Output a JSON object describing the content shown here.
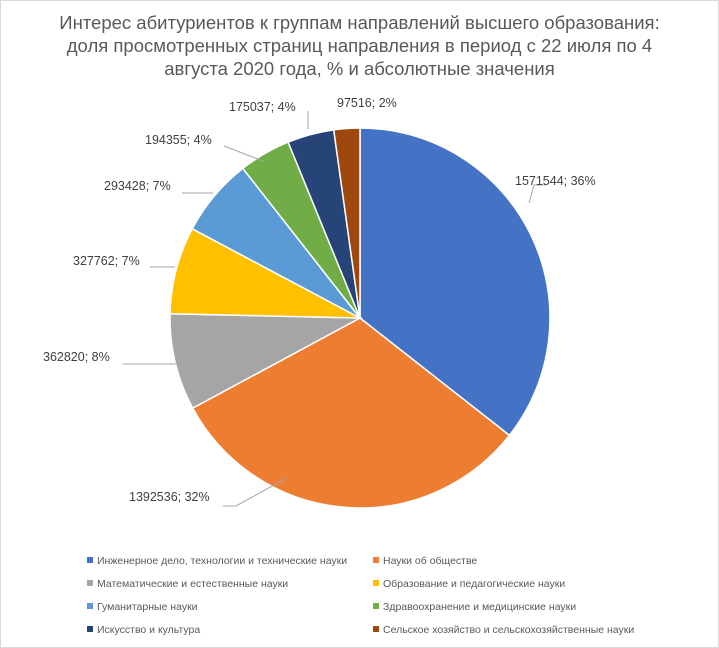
{
  "title_lines": [
    "Интерес абитуриентов к группам направлений высшего образования:",
    "доля просмотренных страниц направления в период с 22 июля по 4",
    "августа 2020 года, % и абсолютные значения"
  ],
  "chart_data": {
    "type": "pie",
    "title": "Интерес абитуриентов к группам направлений высшего образования: доля просмотренных страниц направления в период с 22 июля по 4 августа 2020 года, % и абсолютные значения",
    "legend_position": "bottom",
    "slices": [
      {
        "name": "Инженерное дело, технологии и технические науки",
        "value": 1571544,
        "percent": 36,
        "label": "1571544; 36%",
        "color": "#4472c4"
      },
      {
        "name": "Науки об обществе",
        "value": 1392536,
        "percent": 32,
        "label": "1392536; 32%",
        "color": "#ed7d31"
      },
      {
        "name": "Математические и естественные науки",
        "value": 362820,
        "percent": 8,
        "label": "362820; 8%",
        "color": "#a5a5a5"
      },
      {
        "name": "Образование и педагогические науки",
        "value": 327762,
        "percent": 7,
        "label": "327762; 7%",
        "color": "#ffc000"
      },
      {
        "name": "Гуманитарные науки",
        "value": 293428,
        "percent": 7,
        "label": "293428; 7%",
        "color": "#5b9bd5"
      },
      {
        "name": "Здравоохранение и медицинские науки",
        "value": 194355,
        "percent": 4,
        "label": "194355; 4%",
        "color": "#70ad47"
      },
      {
        "name": "Искусство и культура",
        "value": 175037,
        "percent": 4,
        "label": "175037; 4%",
        "color": "#264478"
      },
      {
        "name": "Сельское хозяйство и сельскохозяйственные науки",
        "value": 97516,
        "percent": 2,
        "label": "97516; 2%",
        "color": "#9e480e"
      }
    ]
  }
}
